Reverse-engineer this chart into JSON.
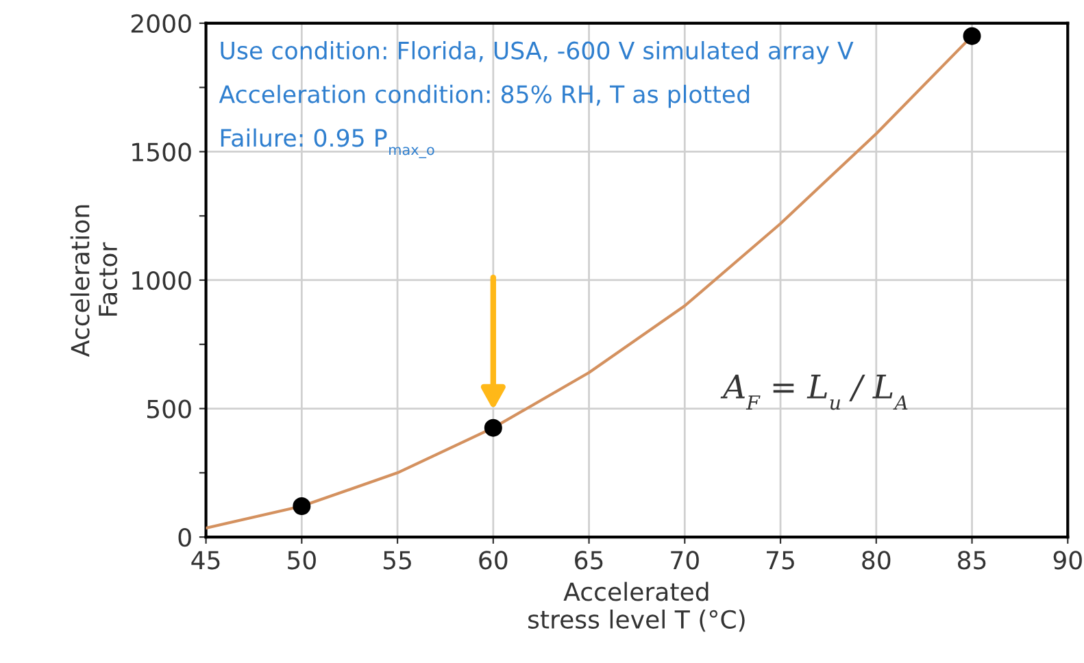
{
  "chart_data": {
    "type": "scatter",
    "xlabel": "Accelerated\nstress level T (°C)",
    "ylabel": "Acceleration\nFactor",
    "xlim": [
      45,
      90
    ],
    "xticks": [
      45,
      50,
      55,
      60,
      65,
      70,
      75,
      80,
      85,
      90
    ],
    "ylim": [
      0,
      2000
    ],
    "yticks": [
      0,
      {
        "value": 250,
        "label": null
      },
      500,
      {
        "value": 750,
        "label": null
      },
      1000,
      {
        "value": 1250,
        "label": null
      },
      1500,
      {
        "value": 1750,
        "label": null
      },
      2000
    ],
    "grid": true,
    "series": [
      {
        "type": "line",
        "color": "#d4915f",
        "marker": "none",
        "line_style": "solid",
        "x": [
          45,
          50,
          55,
          60,
          65,
          70,
          75,
          80,
          85
        ],
        "values": [
          35,
          120,
          250,
          425,
          640,
          900,
          1220,
          1570,
          1950
        ]
      },
      {
        "color": "#000000",
        "marker": "circle",
        "x": [
          50,
          60,
          85
        ],
        "values": [
          120,
          425,
          1950
        ]
      }
    ],
    "annotations": [
      "Use condition: Florida, USA, -600 V simulated array V",
      "Acceleration condition: 85% RH, T as plotted",
      "Failure: 0.95 P$_{max_o}$",
      "A$_{F}$ = L$_{u}$ / L$_{A}$"
    ]
  }
}
